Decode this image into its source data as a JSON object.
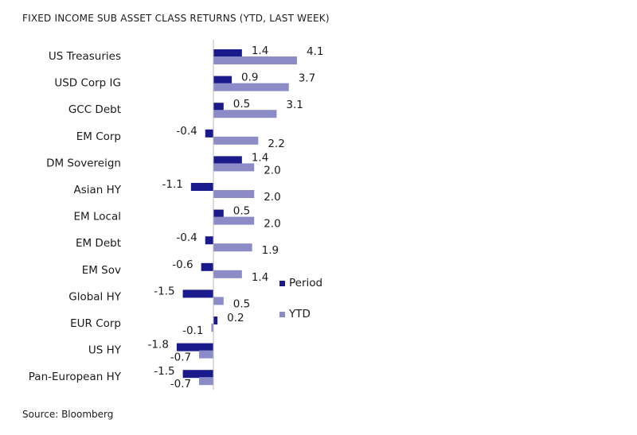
{
  "chart_data": {
    "type": "bar",
    "orientation": "horizontal",
    "title": "FIXED INCOME SUB ASSET CLASS RETURNS (YTD, LAST WEEK)",
    "source": "Source: Bloomberg",
    "categories": [
      "US Treasuries",
      "USD Corp IG",
      "GCC Debt",
      "EM Corp",
      "DM Sovereign",
      "Asian HY",
      "EM Local",
      "EM Debt",
      "EM Sov",
      "Global HY",
      "EUR Corp",
      "US HY",
      "Pan-European HY"
    ],
    "series": [
      {
        "name": "Period",
        "color": "#1a1a8c",
        "values": [
          1.4,
          0.9,
          0.5,
          -0.4,
          1.4,
          -1.1,
          0.5,
          -0.4,
          -0.6,
          -1.5,
          0.2,
          -1.8,
          -1.5
        ]
      },
      {
        "name": "YTD",
        "color": "#8b8bc8",
        "values": [
          4.1,
          3.7,
          3.1,
          2.2,
          2.0,
          2.0,
          2.0,
          1.9,
          1.4,
          0.5,
          -0.1,
          -0.7,
          -0.7
        ]
      }
    ],
    "legend_position": "right",
    "grid": false
  }
}
